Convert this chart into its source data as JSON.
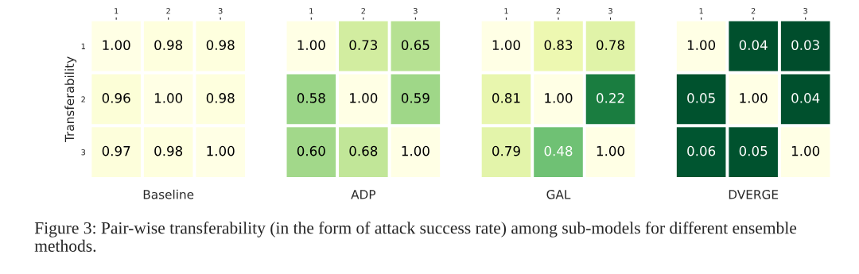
{
  "chart_data": [
    {
      "type": "heatmap",
      "xlabel": "Baseline",
      "ylabel": "Transferability",
      "categories": [
        "1",
        "2",
        "3"
      ],
      "y_categories": [
        "1",
        "2",
        "3"
      ],
      "cells": [
        [
          1,
          0.98,
          0.98
        ],
        [
          0.96,
          1,
          0.98
        ],
        [
          0.97,
          0.98,
          1
        ]
      ],
      "cell_labels": [
        [
          "1.00",
          "0.98",
          "0.98"
        ],
        [
          "0.96",
          "1.00",
          "0.98"
        ],
        [
          "0.97",
          "0.98",
          "1.00"
        ]
      ],
      "annotations": [
        "Figure 3: Pair-wise transferability (in the form of attack success rate) among sub-models for different ensemble methods."
      ]
    },
    {
      "type": "heatmap",
      "xlabel": "ADP",
      "categories": [
        "1",
        "2",
        "3"
      ],
      "y_categories": [
        null,
        null,
        null
      ],
      "tick_labels": "x",
      "cells": [
        [
          1,
          0.73,
          0.65
        ],
        [
          0.58,
          1,
          0.59
        ],
        [
          0.6,
          0.68,
          1
        ]
      ],
      "cell_labels": [
        [
          "1.00",
          "0.73",
          "0.65"
        ],
        [
          "0.58",
          "1.00",
          "0.59"
        ],
        [
          "0.60",
          "0.68",
          "1.00"
        ]
      ]
    },
    {
      "type": "heatmap",
      "xlabel": "GAL",
      "categories": [
        "1",
        "2",
        "3"
      ],
      "y_categories": [
        null,
        null,
        null
      ],
      "tick_labels": "x",
      "cells": [
        [
          1,
          0.83,
          0.78
        ],
        [
          0.81,
          1,
          0.22
        ],
        [
          0.79,
          0.48,
          1
        ]
      ],
      "cell_labels": [
        [
          "1.00",
          "0.83",
          "0.78"
        ],
        [
          "0.81",
          "1.00",
          "0.22"
        ],
        [
          "0.79",
          "0.48",
          "1.00"
        ]
      ]
    },
    {
      "type": "heatmap",
      "xlabel": "DVERGE",
      "categories": [
        "1",
        "2",
        "3"
      ],
      "y_categories": [
        null,
        null,
        null
      ],
      "tick_labels": "x",
      "cells": [
        [
          1,
          0.04,
          0.03
        ],
        [
          0.05,
          1,
          0.04
        ],
        [
          0.06,
          0.05,
          1
        ]
      ],
      "cell_labels": [
        [
          "1.00",
          "0.04",
          "0.03"
        ],
        [
          "0.05",
          "1.00",
          "0.04"
        ],
        [
          "0.06",
          "0.05",
          "1.00"
        ]
      ]
    }
  ]
}
